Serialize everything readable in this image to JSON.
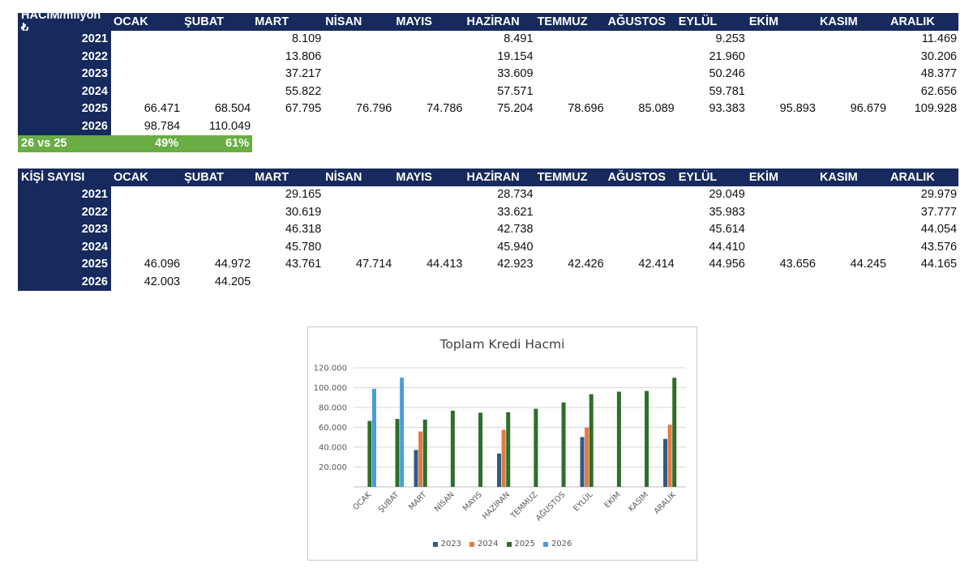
{
  "table1": {
    "header_label": "HACİM/milyon ₺",
    "months": [
      "OCAK",
      "ŞUBAT",
      "MART",
      "NİSAN",
      "MAYIS",
      "HAZİRAN",
      "TEMMUZ",
      "AĞUSTOS",
      "EYLÜL",
      "EKİM",
      "KASIM",
      "ARALIK"
    ],
    "rows": [
      {
        "year": "2021",
        "cells": [
          "",
          "",
          "8.109",
          "",
          "",
          "8.491",
          "",
          "",
          "9.253",
          "",
          "",
          "11.469"
        ]
      },
      {
        "year": "2022",
        "cells": [
          "",
          "",
          "13.806",
          "",
          "",
          "19.154",
          "",
          "",
          "21.960",
          "",
          "",
          "30.206"
        ]
      },
      {
        "year": "2023",
        "cells": [
          "",
          "",
          "37.217",
          "",
          "",
          "33.609",
          "",
          "",
          "50.246",
          "",
          "",
          "48.377"
        ]
      },
      {
        "year": "2024",
        "cells": [
          "",
          "",
          "55.822",
          "",
          "",
          "57.571",
          "",
          "",
          "59.781",
          "",
          "",
          "62.656"
        ]
      },
      {
        "year": "2025",
        "cells": [
          "66.471",
          "68.504",
          "67.795",
          "76.796",
          "74.786",
          "75.204",
          "78.696",
          "85.089",
          "93.383",
          "95.893",
          "96.679",
          "109.928"
        ]
      },
      {
        "year": "2026",
        "cells": [
          "98.784",
          "110.049",
          "",
          "",
          "",
          "",
          "",
          "",
          "",
          "",
          "",
          ""
        ]
      }
    ],
    "comparison": {
      "label": "26 vs 25",
      "values": [
        "49%",
        "61%"
      ]
    }
  },
  "table2": {
    "header_label": "KİŞİ SAYISI",
    "months": [
      "OCAK",
      "ŞUBAT",
      "MART",
      "NİSAN",
      "MAYIS",
      "HAZİRAN",
      "TEMMUZ",
      "AĞUSTOS",
      "EYLÜL",
      "EKİM",
      "KASIM",
      "ARALIK"
    ],
    "rows": [
      {
        "year": "2021",
        "cells": [
          "",
          "",
          "29.165",
          "",
          "",
          "28.734",
          "",
          "",
          "29.049",
          "",
          "",
          "29.979"
        ]
      },
      {
        "year": "2022",
        "cells": [
          "",
          "",
          "30.619",
          "",
          "",
          "33.621",
          "",
          "",
          "35.983",
          "",
          "",
          "37.777"
        ]
      },
      {
        "year": "2023",
        "cells": [
          "",
          "",
          "46.318",
          "",
          "",
          "42.738",
          "",
          "",
          "45.614",
          "",
          "",
          "44.054"
        ]
      },
      {
        "year": "2024",
        "cells": [
          "",
          "",
          "45.780",
          "",
          "",
          "45.940",
          "",
          "",
          "44.410",
          "",
          "",
          "43.576"
        ]
      },
      {
        "year": "2025",
        "cells": [
          "46.096",
          "44.972",
          "43.761",
          "47.714",
          "44.413",
          "42.923",
          "42.426",
          "42.414",
          "44.956",
          "43.656",
          "44.245",
          "44.165"
        ]
      },
      {
        "year": "2026",
        "cells": [
          "42.003",
          "44.205",
          "",
          "",
          "",
          "",
          "",
          "",
          "",
          "",
          "",
          ""
        ]
      }
    ]
  },
  "chart_data": {
    "type": "bar",
    "title": "Toplam Kredi Hacmi",
    "categories": [
      "OCAK",
      "ŞUBAT",
      "MART",
      "NİSAN",
      "MAYIS",
      "HAZİRAN",
      "TEMMUZ",
      "AĞUSTOS",
      "EYLÜL",
      "EKİM",
      "KASIM",
      "ARALIK"
    ],
    "series": [
      {
        "name": "2023",
        "color": "#2f5b85",
        "values": [
          null,
          null,
          37217,
          null,
          null,
          33609,
          null,
          null,
          50246,
          null,
          null,
          48377
        ]
      },
      {
        "name": "2024",
        "color": "#e07b3f",
        "values": [
          null,
          null,
          55822,
          null,
          null,
          57571,
          null,
          null,
          59781,
          null,
          null,
          62656
        ]
      },
      {
        "name": "2025",
        "color": "#2e6e2a",
        "values": [
          66471,
          68504,
          67795,
          76796,
          74786,
          75204,
          78696,
          85089,
          93383,
          95893,
          96679,
          109928
        ]
      },
      {
        "name": "2026",
        "color": "#4a9ed6",
        "values": [
          98784,
          110049,
          null,
          null,
          null,
          null,
          null,
          null,
          null,
          null,
          null,
          null
        ]
      }
    ],
    "yticks": [
      "20.000",
      "40.000",
      "60.000",
      "80.000",
      "100.000",
      "120.000"
    ],
    "ylim": [
      0,
      120000
    ],
    "grid": true,
    "legend_position": "bottom"
  }
}
